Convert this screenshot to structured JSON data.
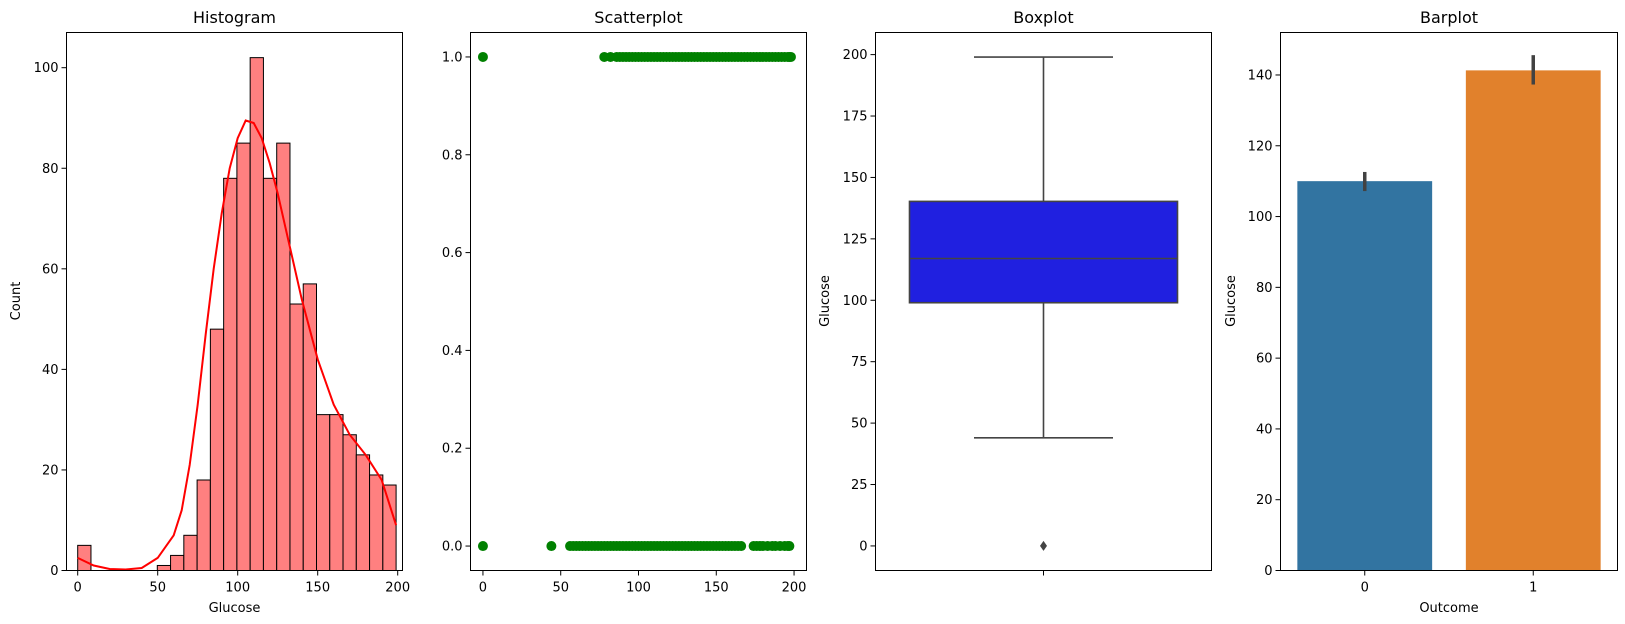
{
  "chart_data": [
    {
      "type": "bar",
      "title": "Histogram",
      "xlabel": "Glucose",
      "ylabel": "Count",
      "xlim": [
        -7,
        203
      ],
      "ylim": [
        0,
        107
      ],
      "xticks": [
        0,
        50,
        100,
        150,
        200
      ],
      "yticks": [
        0,
        20,
        40,
        60,
        80,
        100
      ],
      "bar_color": "#ff8080",
      "edge_color": "#000000",
      "bins": [
        {
          "x0": 0,
          "x1": 8.29,
          "count": 5
        },
        {
          "x0": 8.29,
          "x1": 16.58,
          "count": 0
        },
        {
          "x0": 16.58,
          "x1": 24.88,
          "count": 0
        },
        {
          "x0": 24.88,
          "x1": 33.17,
          "count": 0
        },
        {
          "x0": 33.17,
          "x1": 41.46,
          "count": 0
        },
        {
          "x0": 41.46,
          "x1": 49.75,
          "count": 0
        },
        {
          "x0": 49.75,
          "x1": 58.04,
          "count": 1
        },
        {
          "x0": 58.04,
          "x1": 66.33,
          "count": 3
        },
        {
          "x0": 66.33,
          "x1": 74.63,
          "count": 7
        },
        {
          "x0": 74.63,
          "x1": 82.92,
          "count": 18
        },
        {
          "x0": 82.92,
          "x1": 91.21,
          "count": 48
        },
        {
          "x0": 91.21,
          "x1": 99.5,
          "count": 78
        },
        {
          "x0": 99.5,
          "x1": 107.79,
          "count": 85
        },
        {
          "x0": 107.79,
          "x1": 116.08,
          "count": 102
        },
        {
          "x0": 116.08,
          "x1": 124.38,
          "count": 78
        },
        {
          "x0": 124.38,
          "x1": 132.67,
          "count": 85
        },
        {
          "x0": 132.67,
          "x1": 140.96,
          "count": 53
        },
        {
          "x0": 140.96,
          "x1": 149.25,
          "count": 57
        },
        {
          "x0": 149.25,
          "x1": 157.54,
          "count": 31
        },
        {
          "x0": 157.54,
          "x1": 165.83,
          "count": 31
        },
        {
          "x0": 165.83,
          "x1": 174.13,
          "count": 27
        },
        {
          "x0": 174.13,
          "x1": 182.42,
          "count": 23
        },
        {
          "x0": 182.42,
          "x1": 190.71,
          "count": 19
        },
        {
          "x0": 190.71,
          "x1": 199,
          "count": 17
        }
      ],
      "kde": {
        "color": "#ff0000",
        "x": [
          0,
          10,
          20,
          30,
          40,
          50,
          60,
          65,
          70,
          75,
          80,
          85,
          90,
          95,
          100,
          105,
          110,
          115,
          120,
          125,
          130,
          140,
          150,
          160,
          170,
          180,
          190,
          199
        ],
        "y": [
          2.5,
          1.0,
          0.3,
          0.2,
          0.5,
          2.5,
          7,
          12,
          21,
          33,
          47,
          60,
          71,
          80,
          86,
          89.5,
          89,
          86,
          81,
          75,
          68,
          54,
          42,
          33,
          27,
          23,
          18,
          9
        ]
      }
    },
    {
      "type": "scatter",
      "title": "Scatterplot",
      "xlabel": "",
      "ylabel": "",
      "xlim": [
        -8,
        208
      ],
      "ylim": [
        -0.05,
        1.05
      ],
      "xticks": [
        0,
        50,
        100,
        150,
        200
      ],
      "yticks": [
        0.0,
        0.2,
        0.4,
        0.6,
        0.8,
        1.0
      ],
      "ytick_labels": [
        "0.0",
        "0.2",
        "0.4",
        "0.6",
        "0.8",
        "1.0"
      ],
      "point_color": "#008000",
      "series": [
        {
          "y": 1,
          "x": [
            0,
            78,
            82,
            86,
            88,
            90,
            92,
            94,
            96,
            98,
            100,
            102,
            104,
            106,
            108,
            110,
            112,
            114,
            116,
            118,
            120,
            122,
            124,
            126,
            128,
            130,
            132,
            134,
            136,
            138,
            140,
            142,
            144,
            146,
            148,
            150,
            152,
            154,
            156,
            158,
            160,
            162,
            164,
            166,
            168,
            170,
            172,
            174,
            176,
            178,
            180,
            182,
            184,
            186,
            188,
            190,
            192,
            194,
            196,
            197,
            198
          ]
        },
        {
          "y": 0,
          "x": [
            0,
            44,
            56,
            58,
            60,
            62,
            64,
            66,
            68,
            70,
            72,
            74,
            76,
            78,
            80,
            82,
            84,
            86,
            88,
            90,
            92,
            94,
            96,
            98,
            100,
            102,
            104,
            106,
            108,
            110,
            112,
            114,
            116,
            118,
            120,
            122,
            124,
            126,
            128,
            130,
            132,
            134,
            136,
            138,
            140,
            142,
            144,
            146,
            148,
            150,
            152,
            154,
            156,
            158,
            160,
            162,
            164,
            166,
            174,
            176,
            178,
            180,
            183,
            186,
            188,
            191,
            194,
            196,
            197
          ]
        }
      ]
    },
    {
      "type": "box",
      "title": "Boxplot",
      "xlabel": "",
      "ylabel": "Glucose",
      "ylim": [
        -10,
        209
      ],
      "yticks": [
        0,
        25,
        50,
        75,
        100,
        125,
        150,
        175,
        200
      ],
      "box_color": "#2020e0",
      "line_color": "#444444",
      "whisker_low": 44,
      "q1": 99,
      "median": 117,
      "q3": 140.25,
      "whisker_high": 199,
      "outliers": [
        0
      ]
    },
    {
      "type": "bar",
      "title": "Barplot",
      "xlabel": "Outcome",
      "ylabel": "Glucose",
      "ylim": [
        0,
        152
      ],
      "yticks": [
        0,
        20,
        40,
        60,
        80,
        100,
        120,
        140
      ],
      "categories": [
        "0",
        "1"
      ],
      "values": [
        110,
        141.3
      ],
      "errors_low": [
        107.2,
        137.3
      ],
      "errors_high": [
        112.6,
        145.6
      ],
      "colors": [
        "#3274a1",
        "#e1812c"
      ]
    }
  ]
}
